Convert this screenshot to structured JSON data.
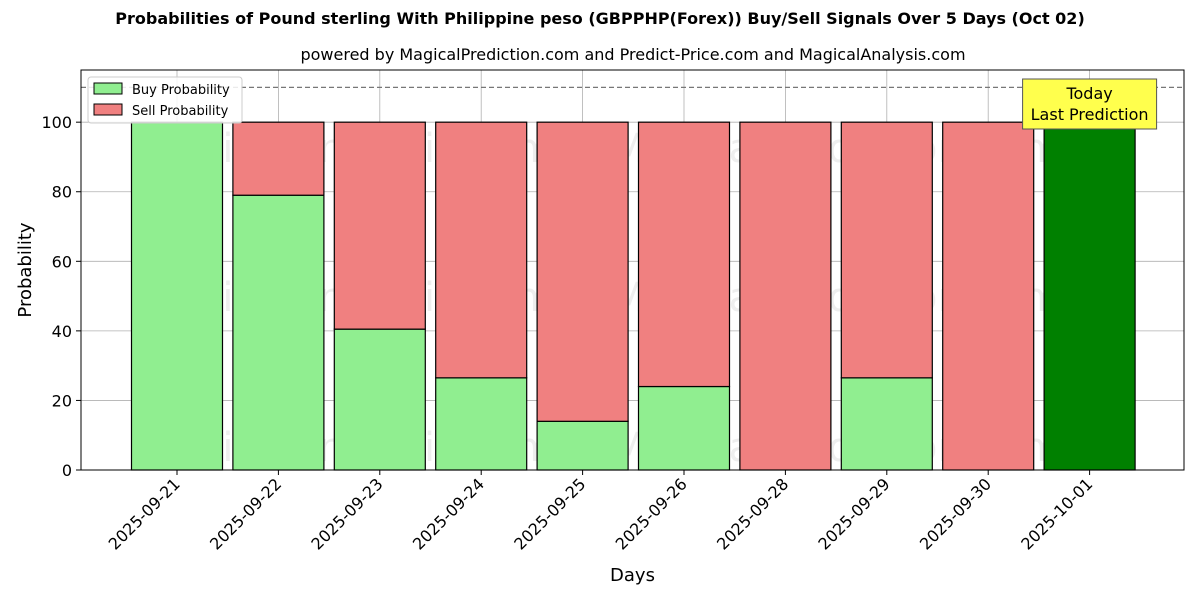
{
  "title": "Probabilities of Pound sterling With Philippine peso (GBPPHP(Forex)) Buy/Sell Signals Over 5 Days (Oct 02)",
  "subtitle": "powered by MagicalPrediction.com and Predict-Price.com and MagicalAnalysis.com",
  "watermarks": [
    "MagicalAnalysis.com",
    "MagicalPrediction.com"
  ],
  "colors": {
    "buy": "#90ee90",
    "sell": "#f08080",
    "today_buy": "#008000",
    "annotation_bg": "#ffff4d",
    "grid": "#b0b0b0"
  },
  "chart_data": {
    "type": "bar",
    "stacked": true,
    "title": "Probabilities of Pound sterling With Philippine peso (GBPPHP(Forex)) Buy/Sell Signals Over 5 Days (Oct 02)",
    "xlabel": "Days",
    "ylabel": "Probability",
    "ylim": [
      0,
      115
    ],
    "yticks": [
      0,
      20,
      40,
      60,
      80,
      100
    ],
    "grid": true,
    "legend_position": "top-left",
    "reference_line": 110,
    "categories": [
      "2025-09-21",
      "2025-09-22",
      "2025-09-23",
      "2025-09-24",
      "2025-09-25",
      "2025-09-26",
      "2025-09-28",
      "2025-09-29",
      "2025-09-30",
      "2025-10-01"
    ],
    "series": [
      {
        "name": "Buy Probability",
        "values": [
          100,
          79,
          40.5,
          26.5,
          14,
          24,
          0,
          26.5,
          0,
          100
        ]
      },
      {
        "name": "Sell Probability",
        "values": [
          0,
          21,
          59.5,
          73.5,
          86,
          76,
          100,
          73.5,
          100,
          0
        ]
      }
    ],
    "annotation": {
      "lines": [
        "Today",
        "Last Prediction"
      ],
      "category": "2025-10-01"
    }
  }
}
